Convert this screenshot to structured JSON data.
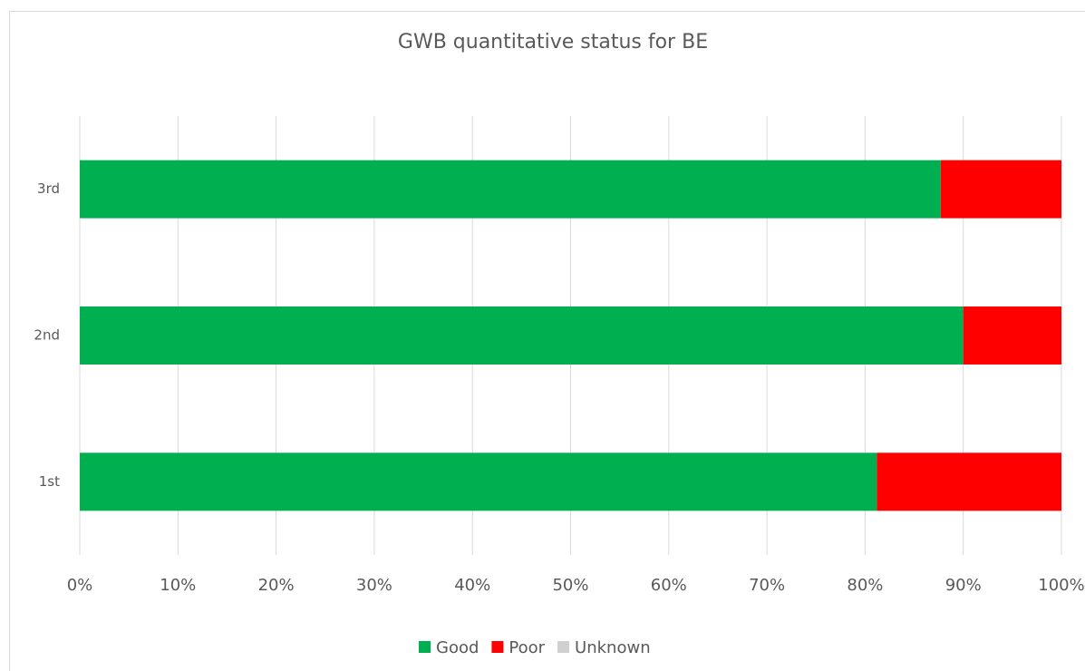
{
  "chart_data": {
    "type": "stacked_bar_horizontal",
    "title": "GWB quantitative status for BE",
    "categories": [
      "1st",
      "2nd",
      "3rd"
    ],
    "series": [
      {
        "name": "Good",
        "color": "#00b050",
        "values": [
          81.2,
          90,
          87.7
        ]
      },
      {
        "name": "Poor",
        "color": "#ff0000",
        "values": [
          18.8,
          10,
          12.3
        ]
      },
      {
        "name": "Unknown",
        "color": "#d0d0d0",
        "values": [
          0,
          0,
          0
        ]
      }
    ],
    "xlim": [
      0,
      100
    ],
    "xticks": [
      {
        "value": 0,
        "label": "0%"
      },
      {
        "value": 10,
        "label": "10%"
      },
      {
        "value": 20,
        "label": "20%"
      },
      {
        "value": 30,
        "label": "30%"
      },
      {
        "value": 40,
        "label": "40%"
      },
      {
        "value": 50,
        "label": "50%"
      },
      {
        "value": 60,
        "label": "60%"
      },
      {
        "value": 70,
        "label": "70%"
      },
      {
        "value": 80,
        "label": "80%"
      },
      {
        "value": 90,
        "label": "90%"
      },
      {
        "value": 100,
        "label": "100%"
      }
    ],
    "grid": true,
    "legend": "bottom"
  }
}
